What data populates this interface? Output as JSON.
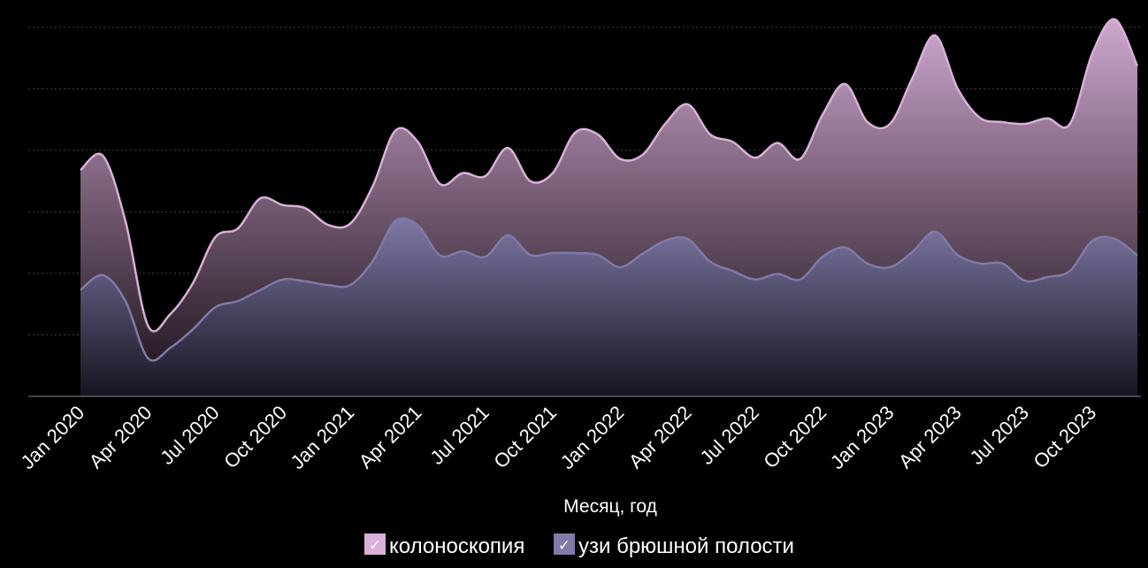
{
  "chart_data": {
    "type": "area",
    "x_label": "Месяц, год",
    "categories": [
      "Jan 2020",
      null,
      null,
      "Apr 2020",
      null,
      null,
      "Jul 2020",
      null,
      null,
      "Oct 2020",
      null,
      null,
      "Jan 2021",
      null,
      null,
      "Apr 2021",
      null,
      null,
      "Jul 2021",
      null,
      null,
      "Oct 2021",
      null,
      null,
      "Jan 2022",
      null,
      null,
      "Apr 2022",
      null,
      null,
      "Jul 2022",
      null,
      null,
      "Oct 2022",
      null,
      null,
      "Jan 2023",
      null,
      null,
      "Apr 2023",
      null,
      null,
      "Jul 2023",
      null,
      null,
      "Oct 2023",
      null,
      null
    ],
    "series": [
      {
        "name": "колоноскопия",
        "color": "#d9b0d9",
        "values": [
          3.68,
          3.91,
          2.85,
          1.15,
          1.34,
          1.84,
          2.59,
          2.73,
          3.22,
          3.11,
          3.06,
          2.79,
          2.81,
          3.42,
          4.32,
          4.14,
          3.45,
          3.63,
          3.58,
          4.04,
          3.5,
          3.63,
          4.29,
          4.26,
          3.86,
          3.93,
          4.43,
          4.75,
          4.26,
          4.14,
          3.88,
          4.12,
          3.86,
          4.58,
          5.08,
          4.46,
          4.43,
          5.18,
          5.87,
          5.01,
          4.53,
          4.46,
          4.43,
          4.52,
          4.43,
          5.58,
          6.13,
          5.37
        ]
      },
      {
        "name": "узи брюшной полости",
        "color": "#7f7aa8",
        "values": [
          1.73,
          1.97,
          1.55,
          0.62,
          0.79,
          1.09,
          1.45,
          1.55,
          1.73,
          1.9,
          1.87,
          1.81,
          1.81,
          2.2,
          2.85,
          2.78,
          2.29,
          2.36,
          2.27,
          2.62,
          2.3,
          2.33,
          2.33,
          2.3,
          2.1,
          2.32,
          2.53,
          2.56,
          2.19,
          2.04,
          1.9,
          1.99,
          1.9,
          2.27,
          2.42,
          2.16,
          2.1,
          2.35,
          2.68,
          2.3,
          2.16,
          2.16,
          1.88,
          1.94,
          2.04,
          2.53,
          2.56,
          2.29
        ]
      }
    ],
    "ylim": [
      0,
      6.2
    ],
    "yticks": [
      0,
      1,
      2,
      3,
      4,
      5,
      6
    ],
    "grid": true
  }
}
